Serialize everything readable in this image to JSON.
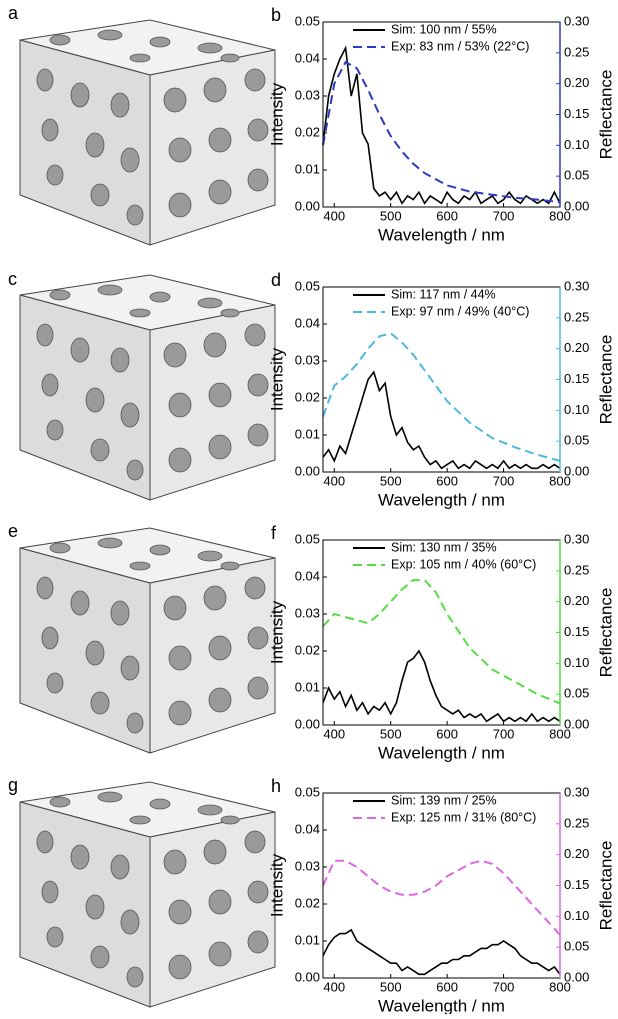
{
  "image_labels": [
    "a",
    "c",
    "e",
    "g"
  ],
  "chart_data": [
    {
      "type": "line",
      "panel": "b",
      "ylabel": "Intensity",
      "y2label": "Reflectance",
      "xlabel": "Wavelength / nm",
      "xlim": [
        380,
        800
      ],
      "xticks": [
        400,
        500,
        600,
        700,
        800
      ],
      "ylim": [
        0,
        0.05
      ],
      "yticks": [
        {
          "value": 0,
          "label": "0.00"
        },
        {
          "value": 0.01,
          "label": "0.01"
        },
        {
          "value": 0.02,
          "label": "0.02"
        },
        {
          "value": 0.03,
          "label": "0.03"
        },
        {
          "value": 0.04,
          "label": "0.04"
        },
        {
          "value": 0.05,
          "label": "0.05"
        }
      ],
      "y2lim": [
        0,
        0.3
      ],
      "y2ticks": [
        {
          "value": 0,
          "label": "0.00"
        },
        {
          "value": 0.05,
          "label": "0.05"
        },
        {
          "value": 0.1,
          "label": "0.10"
        },
        {
          "value": 0.15,
          "label": "0.15"
        },
        {
          "value": 0.2,
          "label": "0.20"
        },
        {
          "value": 0.25,
          "label": "0.25"
        },
        {
          "value": 0.3,
          "label": "0.30"
        }
      ],
      "series": [
        {
          "name": "Sim: 100 nm / 55%",
          "color": "#000000",
          "dash": false,
          "x": [
            380,
            390,
            400,
            410,
            420,
            430,
            440,
            450,
            460,
            470,
            480,
            490,
            500,
            510,
            520,
            530,
            540,
            550,
            560,
            570,
            580,
            590,
            600,
            610,
            620,
            630,
            640,
            650,
            660,
            670,
            680,
            690,
            700,
            710,
            720,
            730,
            740,
            750,
            760,
            770,
            780,
            790,
            800
          ],
          "values": [
            0.017,
            0.03,
            0.036,
            0.04,
            0.043,
            0.03,
            0.036,
            0.02,
            0.017,
            0.005,
            0.003,
            0.004,
            0.002,
            0.004,
            0.001,
            0.003,
            0.002,
            0.004,
            0.001,
            0.003,
            0.002,
            0.001,
            0.004,
            0.002,
            0.001,
            0.003,
            0.002,
            0.004,
            0.001,
            0.002,
            0.003,
            0.001,
            0.002,
            0.004,
            0.002,
            0.001,
            0.003,
            0.002,
            0.001,
            0.002,
            0.001,
            0.004,
            0.001
          ]
        },
        {
          "name": "Exp: 83 nm / 53% (22°C)",
          "color": "#2b3bbf",
          "dash": true,
          "axis": "y2",
          "x": [
            380,
            400,
            420,
            440,
            460,
            480,
            500,
            520,
            540,
            560,
            580,
            600,
            640,
            680,
            720,
            760,
            800
          ],
          "values": [
            0.1,
            0.2,
            0.235,
            0.225,
            0.19,
            0.15,
            0.115,
            0.09,
            0.07,
            0.055,
            0.045,
            0.035,
            0.025,
            0.02,
            0.015,
            0.012,
            0.008
          ]
        }
      ]
    },
    {
      "type": "line",
      "panel": "d",
      "ylabel": "Intensity",
      "y2label": "Reflectance",
      "xlabel": "Wavelength / nm",
      "xlim": [
        380,
        800
      ],
      "xticks": [
        400,
        500,
        600,
        700,
        800
      ],
      "ylim": [
        0,
        0.05
      ],
      "yticks": [
        {
          "value": 0,
          "label": "0.00"
        },
        {
          "value": 0.01,
          "label": "0.01"
        },
        {
          "value": 0.02,
          "label": "0.02"
        },
        {
          "value": 0.03,
          "label": "0.03"
        },
        {
          "value": 0.04,
          "label": "0.04"
        },
        {
          "value": 0.05,
          "label": "0.05"
        }
      ],
      "y2lim": [
        0,
        0.3
      ],
      "y2ticks": [
        {
          "value": 0,
          "label": "0.00"
        },
        {
          "value": 0.05,
          "label": "0.05"
        },
        {
          "value": 0.1,
          "label": "0.10"
        },
        {
          "value": 0.15,
          "label": "0.15"
        },
        {
          "value": 0.2,
          "label": "0.20"
        },
        {
          "value": 0.25,
          "label": "0.25"
        },
        {
          "value": 0.3,
          "label": "0.30"
        }
      ],
      "series": [
        {
          "name": "Sim: 117 nm / 44%",
          "color": "#000000",
          "dash": false,
          "x": [
            380,
            390,
            400,
            410,
            420,
            430,
            440,
            450,
            460,
            470,
            480,
            490,
            500,
            510,
            520,
            530,
            540,
            550,
            560,
            570,
            580,
            590,
            600,
            610,
            620,
            630,
            640,
            650,
            660,
            670,
            680,
            690,
            700,
            710,
            720,
            730,
            740,
            750,
            760,
            770,
            780,
            790,
            800
          ],
          "values": [
            0.004,
            0.006,
            0.003,
            0.007,
            0.005,
            0.01,
            0.015,
            0.02,
            0.025,
            0.027,
            0.022,
            0.024,
            0.015,
            0.01,
            0.012,
            0.008,
            0.006,
            0.007,
            0.004,
            0.002,
            0.003,
            0.001,
            0.002,
            0.003,
            0.001,
            0.002,
            0.001,
            0.003,
            0.002,
            0.001,
            0.002,
            0.001,
            0.003,
            0.001,
            0.002,
            0.001,
            0.002,
            0.001,
            0.001,
            0.002,
            0.001,
            0.002,
            0.001
          ]
        },
        {
          "name": "Exp: 97 nm / 49% (40°C)",
          "color": "#4db8e0",
          "dash": true,
          "axis": "y2",
          "x": [
            380,
            400,
            420,
            440,
            460,
            480,
            500,
            520,
            540,
            560,
            580,
            600,
            640,
            680,
            720,
            760,
            800
          ],
          "values": [
            0.09,
            0.14,
            0.155,
            0.175,
            0.2,
            0.22,
            0.225,
            0.21,
            0.19,
            0.165,
            0.14,
            0.115,
            0.08,
            0.055,
            0.04,
            0.028,
            0.018
          ]
        }
      ]
    },
    {
      "type": "line",
      "panel": "f",
      "ylabel": "Intensity",
      "y2label": "Reflectance",
      "xlabel": "Wavelength / nm",
      "xlim": [
        380,
        800
      ],
      "xticks": [
        400,
        500,
        600,
        700,
        800
      ],
      "ylim": [
        0,
        0.05
      ],
      "yticks": [
        {
          "value": 0,
          "label": "0.00"
        },
        {
          "value": 0.01,
          "label": "0.01"
        },
        {
          "value": 0.02,
          "label": "0.02"
        },
        {
          "value": 0.03,
          "label": "0.03"
        },
        {
          "value": 0.04,
          "label": "0.04"
        },
        {
          "value": 0.05,
          "label": "0.05"
        }
      ],
      "y2lim": [
        0,
        0.3
      ],
      "y2ticks": [
        {
          "value": 0,
          "label": "0.00"
        },
        {
          "value": 0.05,
          "label": "0.05"
        },
        {
          "value": 0.1,
          "label": "0.10"
        },
        {
          "value": 0.15,
          "label": "0.15"
        },
        {
          "value": 0.2,
          "label": "0.20"
        },
        {
          "value": 0.25,
          "label": "0.25"
        },
        {
          "value": 0.3,
          "label": "0.30"
        }
      ],
      "series": [
        {
          "name": "Sim: 130 nm / 35%",
          "color": "#000000",
          "dash": false,
          "x": [
            380,
            390,
            400,
            410,
            420,
            430,
            440,
            450,
            460,
            470,
            480,
            490,
            500,
            510,
            520,
            530,
            540,
            550,
            560,
            570,
            580,
            590,
            600,
            610,
            620,
            630,
            640,
            650,
            660,
            670,
            680,
            690,
            700,
            710,
            720,
            730,
            740,
            750,
            760,
            770,
            780,
            790,
            800
          ],
          "values": [
            0.006,
            0.01,
            0.007,
            0.009,
            0.005,
            0.008,
            0.004,
            0.006,
            0.003,
            0.005,
            0.004,
            0.006,
            0.003,
            0.006,
            0.012,
            0.017,
            0.018,
            0.02,
            0.017,
            0.012,
            0.008,
            0.005,
            0.004,
            0.003,
            0.004,
            0.002,
            0.003,
            0.002,
            0.003,
            0.001,
            0.002,
            0.003,
            0.001,
            0.002,
            0.001,
            0.002,
            0.001,
            0.003,
            0.001,
            0.002,
            0.001,
            0.002,
            0.001
          ]
        },
        {
          "name": "Exp: 105 nm / 40% (60°C)",
          "color": "#55dd44",
          "dash": true,
          "axis": "y2",
          "x": [
            380,
            400,
            420,
            440,
            460,
            480,
            500,
            520,
            540,
            560,
            580,
            600,
            640,
            680,
            720,
            760,
            800
          ],
          "values": [
            0.16,
            0.18,
            0.175,
            0.17,
            0.165,
            0.18,
            0.2,
            0.22,
            0.235,
            0.235,
            0.215,
            0.18,
            0.125,
            0.09,
            0.07,
            0.05,
            0.035
          ]
        }
      ]
    },
    {
      "type": "line",
      "panel": "h",
      "ylabel": "Intensity",
      "y2label": "Reflectance",
      "xlabel": "Wavelength / nm",
      "xlim": [
        380,
        800
      ],
      "xticks": [
        400,
        500,
        600,
        700,
        800
      ],
      "ylim": [
        0,
        0.05
      ],
      "yticks": [
        {
          "value": 0,
          "label": "0.00"
        },
        {
          "value": 0.01,
          "label": "0.01"
        },
        {
          "value": 0.02,
          "label": "0.02"
        },
        {
          "value": 0.03,
          "label": "0.03"
        },
        {
          "value": 0.04,
          "label": "0.04"
        },
        {
          "value": 0.05,
          "label": "0.05"
        }
      ],
      "y2lim": [
        0,
        0.3
      ],
      "y2ticks": [
        {
          "value": 0,
          "label": "0.00"
        },
        {
          "value": 0.05,
          "label": "0.05"
        },
        {
          "value": 0.1,
          "label": "0.10"
        },
        {
          "value": 0.15,
          "label": "0.15"
        },
        {
          "value": 0.2,
          "label": "0.20"
        },
        {
          "value": 0.25,
          "label": "0.25"
        },
        {
          "value": 0.3,
          "label": "0.30"
        }
      ],
      "series": [
        {
          "name": "Sim: 139 nm / 25%",
          "color": "#000000",
          "dash": false,
          "x": [
            380,
            390,
            400,
            410,
            420,
            430,
            440,
            450,
            460,
            470,
            480,
            490,
            500,
            510,
            520,
            530,
            540,
            550,
            560,
            570,
            580,
            590,
            600,
            610,
            620,
            630,
            640,
            650,
            660,
            670,
            680,
            690,
            700,
            710,
            720,
            730,
            740,
            750,
            760,
            770,
            780,
            790,
            800
          ],
          "values": [
            0.006,
            0.009,
            0.011,
            0.012,
            0.012,
            0.013,
            0.01,
            0.009,
            0.008,
            0.007,
            0.006,
            0.005,
            0.004,
            0.004,
            0.002,
            0.003,
            0.002,
            0.001,
            0.001,
            0.002,
            0.003,
            0.004,
            0.004,
            0.005,
            0.005,
            0.006,
            0.006,
            0.007,
            0.008,
            0.008,
            0.009,
            0.009,
            0.01,
            0.009,
            0.008,
            0.006,
            0.005,
            0.004,
            0.004,
            0.003,
            0.002,
            0.003,
            0.001
          ]
        },
        {
          "name": "Exp: 125 nm / 31% (80°C)",
          "color": "#dd66e6",
          "dash": true,
          "axis": "y2",
          "x": [
            380,
            400,
            420,
            440,
            460,
            480,
            500,
            520,
            540,
            560,
            580,
            600,
            620,
            640,
            660,
            680,
            700,
            720,
            740,
            760,
            780,
            800
          ],
          "values": [
            0.15,
            0.19,
            0.19,
            0.18,
            0.165,
            0.15,
            0.14,
            0.135,
            0.135,
            0.14,
            0.15,
            0.165,
            0.175,
            0.185,
            0.19,
            0.185,
            0.17,
            0.15,
            0.13,
            0.11,
            0.09,
            0.07
          ]
        }
      ]
    }
  ]
}
